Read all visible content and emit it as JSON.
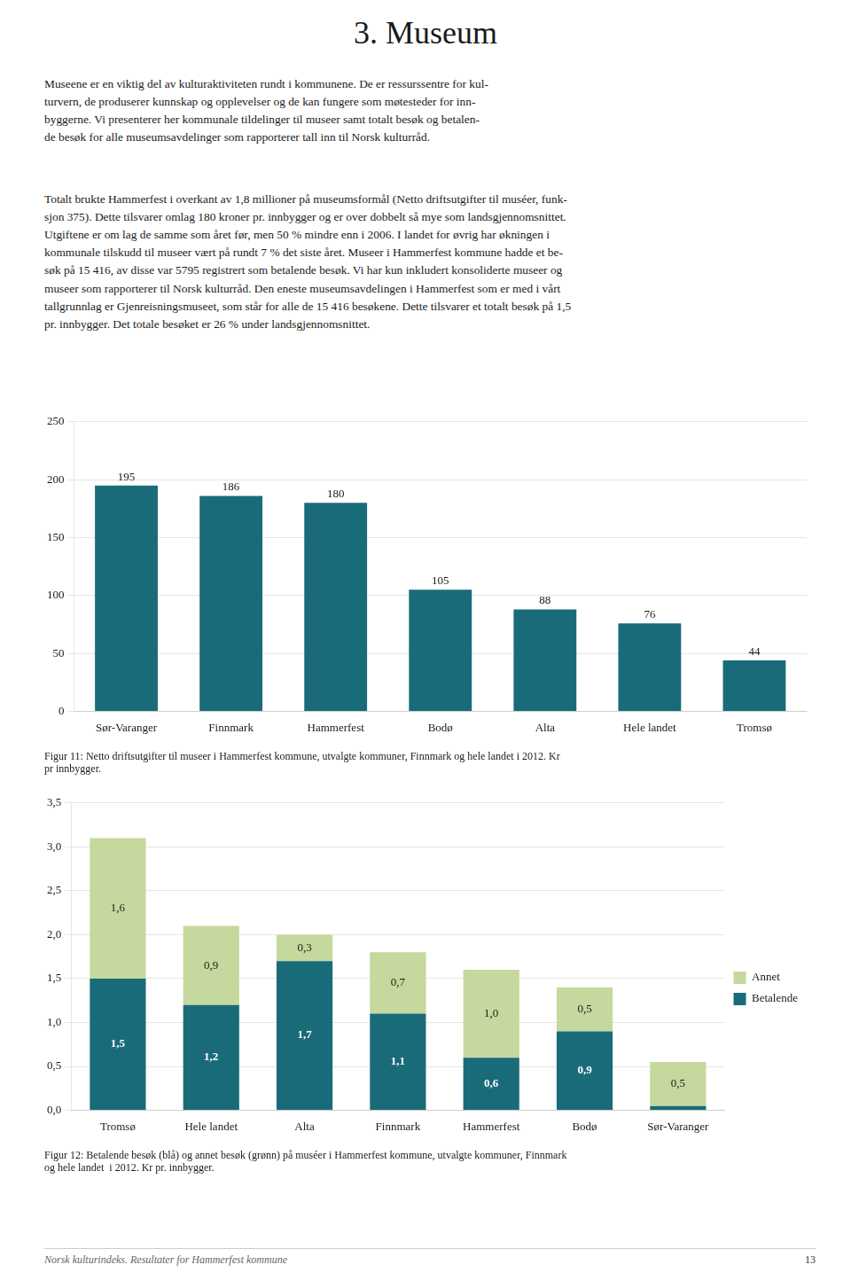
{
  "page_title": "3.  Museum",
  "body_text": [
    "Museene er en viktig del av kulturaktiviteten rundt i kommunene. De er ressurssentre for kul-\nturvern, de produserer kunnskap og opplevelser og de kan fungere som møtesteder for inn-\nbyggerne. Vi presenterer her kommunale tildelinger til museer samt totalt besøk og betalen-\nde besøk for alle museumsavdelinger som rapporterer tall inn til Norsk kulturråd.",
    "Totalt brukte Hammerfest i overkant av 1,8 millioner på museumsformål (Netto driftsutgifter til muséer, funk-\nsjon 375). Dette tilsvarer omlag 180 kroner pr. innbygger og er over dobbelt så mye som landsgjennomsnittet.\nUtgiftene er om lag de samme som året før, men 50 % mindre enn i 2006. I landet for øvrig har økningen i\nkommunale tilskudd til museer vært på rundt 7 % det siste året. Museer i Hammerfest kommune hadde et be-\nsøk på 15 416, av disse var 5795 registrert som betalende besøk. Vi har kun inkludert konsoliderte museer og\nmuseer som rapporterer til Norsk kulturråd. Den eneste museumsavdelingen i Hammerfest som er med i vårt\ntallgrunnlag er Gjenreisningsmuseet, som står for alle de 15 416 besøkene. Dette tilsvarer et totalt besøk på 1,5\npr. innbygger. Det totale besøket er 26 % under landsgjennomsnittet."
  ],
  "footer": [
    "Norsk kulturindeks. Resultater for Hammerfest kommune",
    "13"
  ],
  "chart_data": [
    {
      "type": "bar",
      "title": "Figur 11: Netto driftsutgifter til museer i Hammerfest kommune, utvalgte kommuner, Finnmark og hele landet i 2012. Kr\npr innbygger.",
      "categories": [
        "Sør-Varanger",
        "Finnmark",
        "Hammerfest",
        "Bodø",
        "Alta",
        "Hele landet",
        "Tromsø"
      ],
      "values": [
        195,
        186,
        180,
        105,
        88,
        76,
        44
      ],
      "color": "#1a6b7a",
      "ylim": [
        0,
        250
      ],
      "yticks": [
        0,
        50,
        100,
        150,
        200,
        250
      ],
      "grid": true,
      "data_labels": true
    },
    {
      "type": "bar",
      "title": "Figur 12: Betalende besøk (blå) og annet besøk (grønn) på muséer i Hammerfest kommune, utvalgte kommuner, Finnmark\nog hele landet  i 2012. Kr pr. innbygger.",
      "categories": [
        "Tromsø",
        "Hele landet",
        "Alta",
        "Finnmark",
        "Hammerfest",
        "Bodø",
        "Sør-Varanger"
      ],
      "series": [
        {
          "name": "Betalende",
          "color": "#1a6b7a",
          "values": [
            1.5,
            1.2,
            1.7,
            1.1,
            0.6,
            0.9,
            0.05
          ],
          "value_labels": [
            "1,5",
            "1,2",
            "1,7",
            "1,1",
            "0,6",
            "0,9",
            null
          ]
        },
        {
          "name": "Annet",
          "color": "#c5d89d",
          "values": [
            1.6,
            0.9,
            0.3,
            0.7,
            1.0,
            0.5,
            0.5
          ],
          "value_labels": [
            "1,6",
            "0,9",
            "0,3",
            "0,7",
            "1,0",
            "0,5",
            "0,5"
          ]
        }
      ],
      "stacked": true,
      "ylim": [
        0,
        3.5
      ],
      "yticks": [
        {
          "value": 0.0,
          "label": "0,0"
        },
        {
          "value": 0.5,
          "label": "0,5"
        },
        {
          "value": 1.0,
          "label": "1,0"
        },
        {
          "value": 1.5,
          "label": "1,5"
        },
        {
          "value": 2.0,
          "label": "2,0"
        },
        {
          "value": 2.5,
          "label": "2,5"
        },
        {
          "value": 3.0,
          "label": "3,0"
        },
        {
          "value": 3.5,
          "label": "3,5"
        }
      ],
      "grid": true,
      "legend": "right",
      "data_labels": true
    }
  ]
}
